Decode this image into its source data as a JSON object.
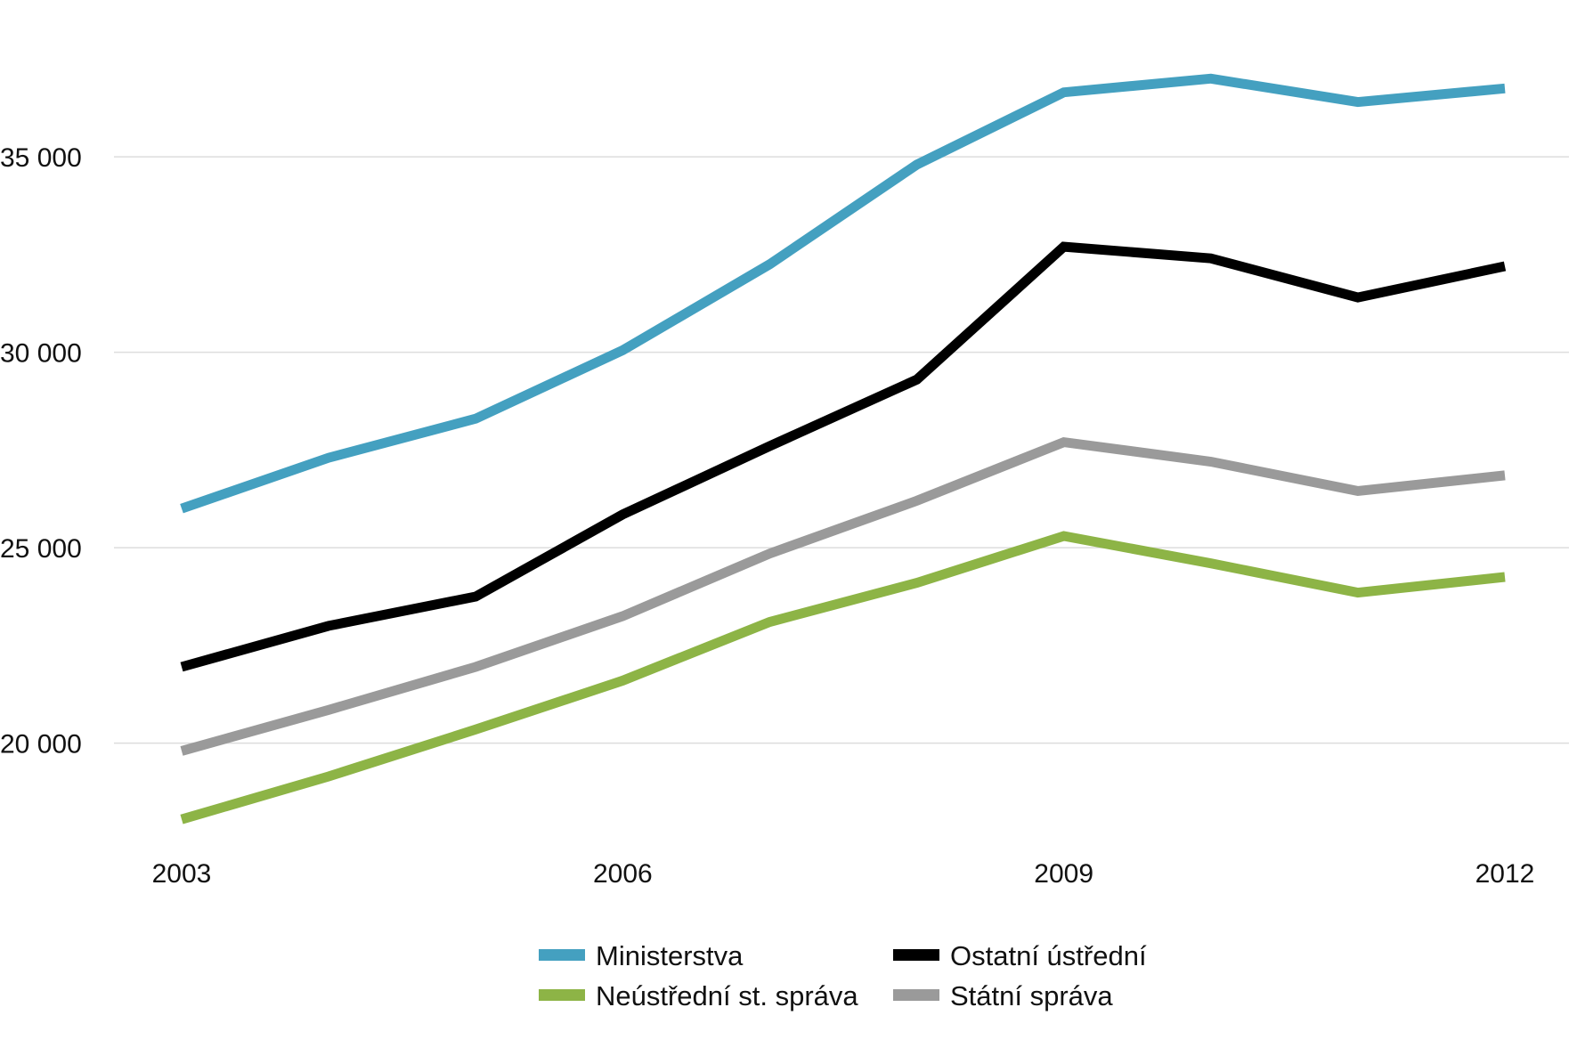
{
  "chart_data": {
    "type": "line",
    "x": [
      2003,
      2004,
      2005,
      2006,
      2007,
      2008,
      2009,
      2010,
      2011,
      2012
    ],
    "x_tick_labels": [
      "2003",
      "2006",
      "2009",
      "2012"
    ],
    "x_tick_values": [
      2003,
      2006,
      2009,
      2012
    ],
    "y_tick_labels": [
      "20 000",
      "25 000",
      "30 000",
      "35 000"
    ],
    "y_tick_values": [
      20000,
      25000,
      30000,
      35000
    ],
    "ylim": [
      17600,
      38100
    ],
    "grid": "horizontal",
    "legend_position": "bottom-center",
    "title": "",
    "xlabel": "",
    "ylabel": "",
    "series": [
      {
        "name": "Ministerstva",
        "color": "#44a0c0",
        "values": [
          26000,
          27300,
          28300,
          30050,
          32250,
          34800,
          36650,
          37000,
          36400,
          36750
        ]
      },
      {
        "name": "Ostatní ústřední",
        "color": "#000000",
        "values": [
          21950,
          23000,
          23750,
          25850,
          27600,
          29300,
          32700,
          32400,
          31400,
          32200
        ]
      },
      {
        "name": "Neústřední st. správa",
        "color": "#8db446",
        "values": [
          18050,
          19150,
          20350,
          21600,
          23100,
          24100,
          25300,
          24600,
          23850,
          24250
        ]
      },
      {
        "name": "Státní správa",
        "color": "#9a9a9a",
        "values": [
          19800,
          20850,
          21950,
          23250,
          24850,
          26200,
          27700,
          27200,
          26450,
          26850
        ]
      }
    ]
  }
}
